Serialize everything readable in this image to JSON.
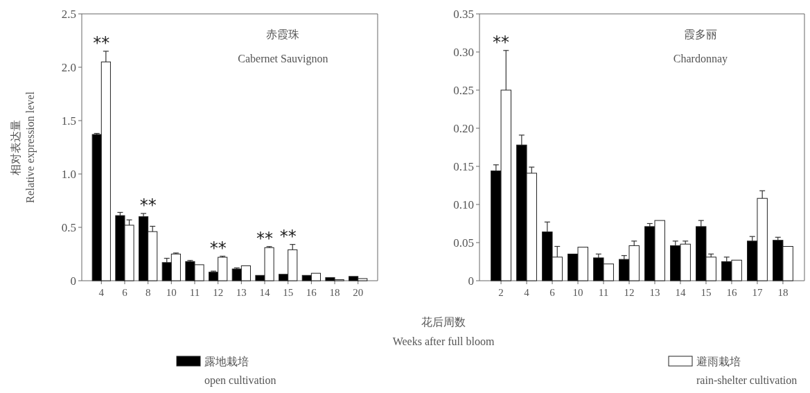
{
  "chart_data": [
    {
      "type": "bar",
      "title": "赤霞珠",
      "subtitle": "Cabernet Sauvignon",
      "xlabel": "花后周数\nWeeks after full bloom",
      "ylabel": "相对表达量\nRelative expression level",
      "categories": [
        "4",
        "6",
        "8",
        "10",
        "11",
        "12",
        "13",
        "14",
        "15",
        "16",
        "18",
        "20"
      ],
      "series": [
        {
          "name": "露地栽培\nopen cultivation",
          "color": "#000000",
          "values": [
            1.37,
            0.61,
            0.6,
            0.17,
            0.18,
            0.08,
            0.11,
            0.05,
            0.06,
            0.05,
            0.03,
            0.04
          ],
          "errors": [
            0.01,
            0.03,
            0.03,
            0.04,
            0.01,
            0.01,
            0.01,
            null,
            null,
            null,
            null,
            null
          ]
        },
        {
          "name": "避雨栽培\nrain-shelter cultivation",
          "color": "#ffffff",
          "values": [
            2.05,
            0.52,
            0.46,
            0.25,
            0.15,
            0.22,
            0.14,
            0.31,
            0.29,
            0.07,
            0.01,
            0.02
          ],
          "errors": [
            0.1,
            0.05,
            0.05,
            0.01,
            null,
            0.01,
            null,
            0.01,
            0.05,
            null,
            null,
            null
          ]
        }
      ],
      "ylim": [
        0,
        2.5
      ],
      "yticks": [
        0,
        0.5,
        {
          "value": 1,
          "label": "1.0"
        },
        1.5,
        {
          "value": 2,
          "label": "2.0"
        },
        2.5
      ],
      "legend": "bottom",
      "annotations": [
        {
          "text": "**",
          "x": "4",
          "y": 2.15
        },
        {
          "text": "**",
          "x": "8",
          "y": 0.63
        },
        {
          "text": "**",
          "x": "12",
          "y": 0.23
        },
        {
          "text": "**",
          "x": "14",
          "y": 0.32
        },
        {
          "text": "**",
          "x": "15",
          "y": 0.34
        }
      ]
    },
    {
      "type": "bar",
      "title": "霞多丽",
      "subtitle": "Chardonnay",
      "categories": [
        "2",
        "4",
        "6",
        "10",
        "11",
        "12",
        "13",
        "14",
        "15",
        "16",
        "17",
        "18"
      ],
      "series": [
        {
          "color": "#000000",
          "values": [
            0.144,
            0.178,
            0.064,
            0.035,
            0.03,
            0.028,
            0.071,
            0.046,
            0.071,
            0.025,
            0.052,
            0.053
          ],
          "errors": [
            0.008,
            0.013,
            0.013,
            null,
            0.005,
            0.005,
            0.004,
            0.006,
            0.008,
            0.006,
            0.006,
            0.004
          ]
        },
        {
          "color": "#ffffff",
          "values": [
            0.25,
            0.141,
            0.031,
            0.044,
            0.022,
            0.046,
            0.079,
            0.048,
            0.031,
            0.027,
            0.108,
            0.045
          ],
          "errors": [
            0.052,
            0.008,
            0.014,
            null,
            null,
            0.006,
            null,
            0.004,
            0.004,
            null,
            0.01,
            null
          ]
        }
      ],
      "ylim": [
        0,
        0.35
      ],
      "yticks": [
        0,
        0.05,
        {
          "value": 0.1,
          "label": "0.10"
        },
        0.15,
        {
          "value": 0.2,
          "label": "0.20"
        },
        0.25,
        {
          "value": 0.3,
          "label": "0.30"
        },
        0.35
      ],
      "annotations": [
        {
          "text": "**",
          "x": "2",
          "y": 0.302
        }
      ]
    }
  ]
}
